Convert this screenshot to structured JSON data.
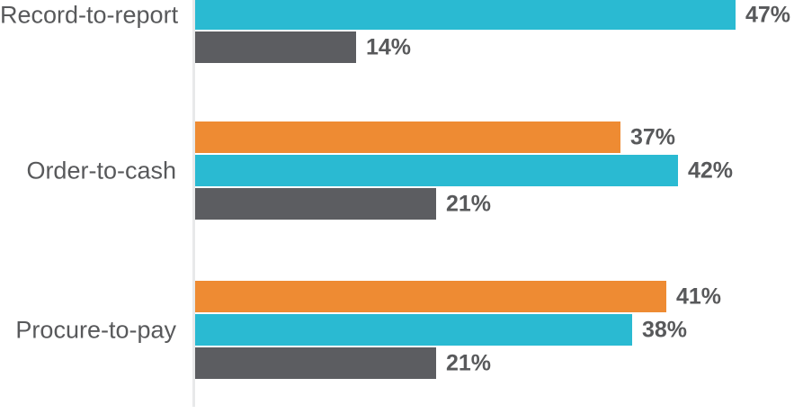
{
  "chart_data": {
    "type": "bar",
    "orientation": "horizontal",
    "title": "",
    "xlabel": "",
    "ylabel": "",
    "categories": [
      "Record-to-report",
      "Order-to-cash",
      "Procure-to-pay"
    ],
    "series": [
      {
        "name": "orange-series",
        "color": "#EE8B33",
        "values": [
          null,
          37,
          41
        ],
        "labels": [
          null,
          "37%",
          "41%"
        ]
      },
      {
        "name": "teal-series",
        "color": "#2ABAD2",
        "values": [
          47,
          42,
          38
        ],
        "labels": [
          "47%",
          "42%",
          "38%"
        ]
      },
      {
        "name": "gray-series",
        "color": "#5C5D61",
        "values": [
          14,
          21,
          21
        ],
        "labels": [
          "14%",
          "21%",
          "21%"
        ]
      }
    ],
    "value_suffix": "%",
    "xlim": [
      0,
      52
    ],
    "grid": false,
    "legend": "none",
    "colors": {
      "label_text": "#58595B",
      "axis_line": "#E8E9EA",
      "background": "#FFFFFF"
    }
  }
}
